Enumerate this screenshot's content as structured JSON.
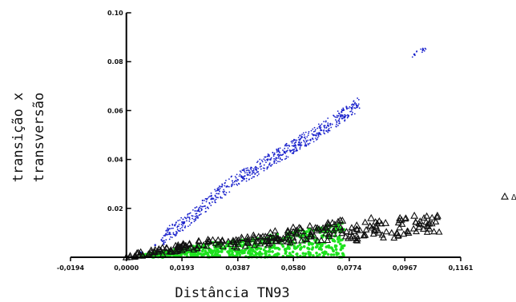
{
  "chart_data": {
    "type": "scatter",
    "title": "",
    "xlabel": "Distância TN93",
    "ylabel": [
      "transição x",
      "transversão"
    ],
    "xlim": [
      -0.0194,
      0.1161
    ],
    "ylim": [
      0.0,
      0.1
    ],
    "x_ticks": [
      {
        "value": -0.0194,
        "label": "-0,0194"
      },
      {
        "value": 0.0,
        "label": "0,0000"
      },
      {
        "value": 0.0193,
        "label": "0,0193"
      },
      {
        "value": 0.0387,
        "label": "0,0387"
      },
      {
        "value": 0.058,
        "label": "0,0580"
      },
      {
        "value": 0.0774,
        "label": "0,0774"
      },
      {
        "value": 0.0967,
        "label": "0,0967"
      },
      {
        "value": 0.1161,
        "label": "0,1161"
      }
    ],
    "y_ticks": [
      {
        "value": 0.02,
        "label": "0.02"
      },
      {
        "value": 0.04,
        "label": "0.04"
      },
      {
        "value": 0.06,
        "label": "0.06"
      },
      {
        "value": 0.08,
        "label": "0.08"
      },
      {
        "value": 0.1,
        "label": "0.10"
      }
    ],
    "grid": false,
    "legend_placement": "right",
    "legend_fragments": [
      {
        "marker": "triangle",
        "label": "Δv"
      }
    ],
    "series": [
      {
        "marker": "dot",
        "color": "#1a22cc",
        "points": [
          [
            0.0,
            0.0
          ],
          [
            0.005,
            0.002
          ],
          [
            0.01,
            0.005
          ],
          [
            0.015,
            0.01
          ],
          [
            0.02,
            0.014
          ],
          [
            0.025,
            0.019
          ],
          [
            0.03,
            0.024
          ],
          [
            0.035,
            0.029
          ],
          [
            0.04,
            0.033
          ],
          [
            0.045,
            0.036
          ],
          [
            0.05,
            0.04
          ],
          [
            0.055,
            0.043
          ],
          [
            0.06,
            0.047
          ],
          [
            0.065,
            0.05
          ],
          [
            0.07,
            0.054
          ],
          [
            0.075,
            0.058
          ],
          [
            0.08,
            0.062
          ],
          [
            0.1,
            0.083
          ],
          [
            0.103,
            0.085
          ]
        ]
      },
      {
        "marker": "triangle",
        "color": "#111111",
        "points": [
          [
            0.0,
            0.0
          ],
          [
            0.01,
            0.003
          ],
          [
            0.02,
            0.005
          ],
          [
            0.03,
            0.007
          ],
          [
            0.04,
            0.008
          ],
          [
            0.05,
            0.01
          ],
          [
            0.06,
            0.012
          ],
          [
            0.07,
            0.014
          ],
          [
            0.075,
            0.015
          ],
          [
            0.08,
            0.013
          ],
          [
            0.085,
            0.016
          ],
          [
            0.09,
            0.014
          ],
          [
            0.095,
            0.016
          ],
          [
            0.1,
            0.017
          ],
          [
            0.108,
            0.017
          ]
        ]
      },
      {
        "marker": "dot",
        "color": "#1ee21e",
        "points": [
          [
            0.005,
            0.001
          ],
          [
            0.01,
            0.002
          ],
          [
            0.015,
            0.003
          ],
          [
            0.02,
            0.004
          ],
          [
            0.03,
            0.006
          ],
          [
            0.04,
            0.007
          ],
          [
            0.05,
            0.009
          ],
          [
            0.06,
            0.011
          ],
          [
            0.07,
            0.013
          ],
          [
            0.075,
            0.014
          ]
        ]
      }
    ]
  }
}
